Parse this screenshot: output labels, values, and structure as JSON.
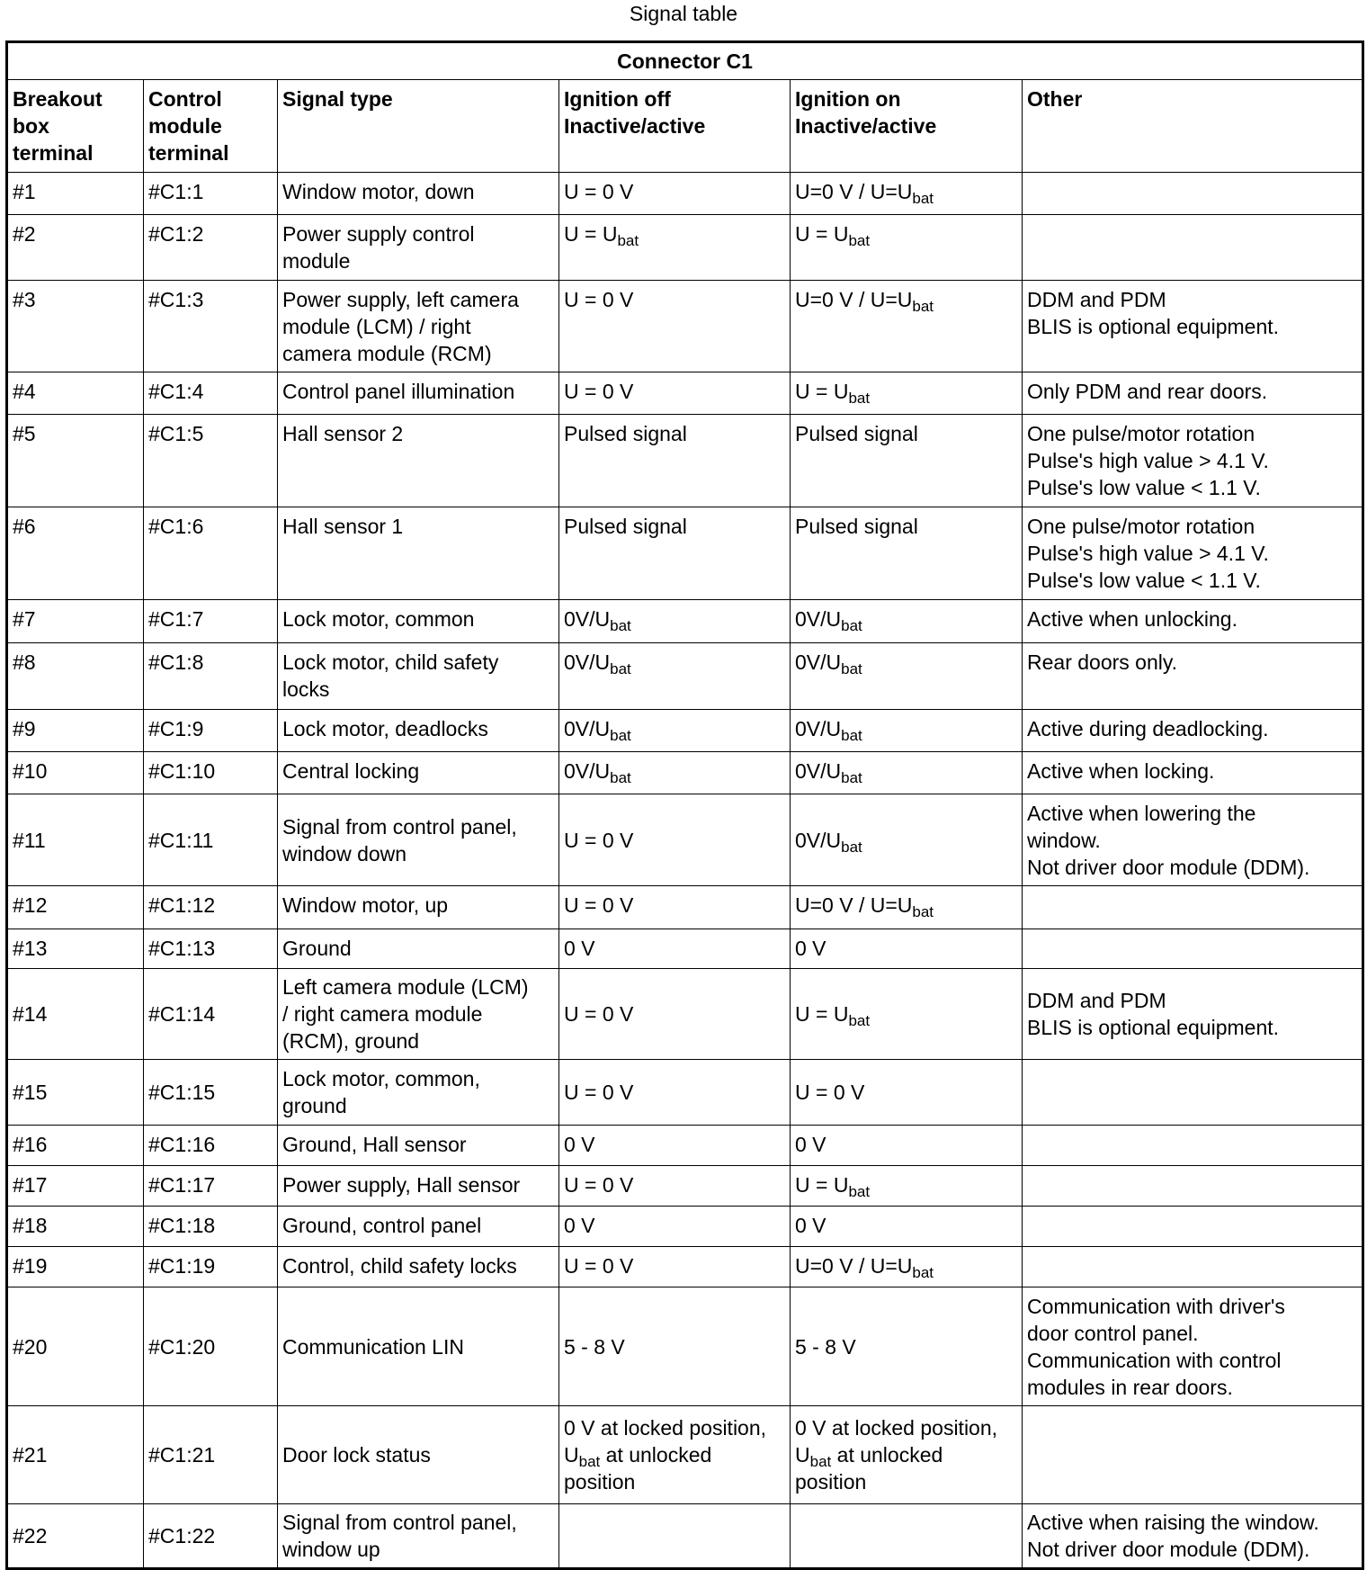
{
  "title": "Signal table",
  "connector": "Connector C1",
  "headers": [
    "Breakout\nbox\nterminal",
    "Control\nmodule\nterminal",
    "Signal type",
    "Ignition off\nInactive/active",
    "Ignition on\nInactive/active",
    "Other"
  ],
  "rows": [
    [
      [
        "#1"
      ],
      [
        "#C1:1"
      ],
      [
        "Window motor, down"
      ],
      [
        "U = 0 V"
      ],
      [
        "U=0 V / U=U",
        {
          "sub": "bat"
        }
      ],
      [
        ""
      ]
    ],
    [
      [
        "#2"
      ],
      [
        "#C1:2"
      ],
      [
        "Power supply control\nmodule"
      ],
      [
        "U = U",
        {
          "sub": "bat"
        }
      ],
      [
        "U = U",
        {
          "sub": "bat"
        }
      ],
      [
        ""
      ]
    ],
    [
      [
        "#3"
      ],
      [
        "#C1:3"
      ],
      [
        "Power supply, left camera\nmodule (LCM) / right\ncamera module (RCM)"
      ],
      [
        "U = 0 V"
      ],
      [
        "U=0 V / U=U",
        {
          "sub": "bat"
        }
      ],
      [
        "DDM and PDM\nBLIS is optional equipment."
      ]
    ],
    [
      [
        "#4"
      ],
      [
        "#C1:4"
      ],
      [
        "Control panel illumination"
      ],
      [
        "U = 0 V"
      ],
      [
        "U = U",
        {
          "sub": "bat"
        }
      ],
      [
        "Only PDM and rear doors."
      ]
    ],
    [
      [
        "#5"
      ],
      [
        "#C1:5"
      ],
      [
        "Hall sensor 2"
      ],
      [
        "Pulsed signal"
      ],
      [
        "Pulsed signal"
      ],
      [
        "One pulse/motor rotation\nPulse's high value > 4.1 V.\nPulse's low value < 1.1 V."
      ]
    ],
    [
      [
        "#6"
      ],
      [
        "#C1:6"
      ],
      [
        "Hall sensor 1"
      ],
      [
        "Pulsed signal"
      ],
      [
        "Pulsed signal"
      ],
      [
        "One pulse/motor rotation\nPulse's high value > 4.1 V.\nPulse's low value < 1.1 V."
      ]
    ],
    [
      [
        "#7"
      ],
      [
        "#C1:7"
      ],
      [
        "Lock motor, common"
      ],
      [
        "0V/U",
        {
          "sub": "bat"
        }
      ],
      [
        "0V/U",
        {
          "sub": "bat"
        }
      ],
      [
        "Active when unlocking."
      ]
    ],
    [
      [
        "#8"
      ],
      [
        "#C1:8"
      ],
      [
        "Lock motor, child safety\nlocks"
      ],
      [
        "0V/U",
        {
          "sub": "bat"
        }
      ],
      [
        "0V/U",
        {
          "sub": "bat"
        }
      ],
      [
        "Rear doors only."
      ]
    ],
    [
      [
        "#9"
      ],
      [
        "#C1:9"
      ],
      [
        "Lock motor, deadlocks"
      ],
      [
        "0V/U",
        {
          "sub": "bat"
        }
      ],
      [
        "0V/U",
        {
          "sub": "bat"
        }
      ],
      [
        "Active during deadlocking."
      ]
    ],
    [
      [
        "#10"
      ],
      [
        "#C1:10"
      ],
      [
        "Central locking"
      ],
      [
        "0V/U",
        {
          "sub": "bat"
        }
      ],
      [
        "0V/U",
        {
          "sub": "bat"
        }
      ],
      [
        "Active when locking."
      ]
    ],
    [
      [
        "#11"
      ],
      [
        "#C1:11"
      ],
      [
        "Signal from control panel,\nwindow down"
      ],
      [
        "U = 0 V"
      ],
      [
        "0V/U",
        {
          "sub": "bat"
        }
      ],
      [
        "Active when lowering the\nwindow.\nNot driver door module (DDM)."
      ]
    ],
    [
      [
        "#12"
      ],
      [
        "#C1:12"
      ],
      [
        "Window motor, up"
      ],
      [
        "U = 0 V"
      ],
      [
        "U=0 V / U=U",
        {
          "sub": "bat"
        }
      ],
      [
        ""
      ]
    ],
    [
      [
        "#13"
      ],
      [
        "#C1:13"
      ],
      [
        "Ground"
      ],
      [
        "0 V"
      ],
      [
        "0 V"
      ],
      [
        ""
      ]
    ],
    [
      [
        "#14"
      ],
      [
        "#C1:14"
      ],
      [
        "Left camera module (LCM)\n/ right camera module\n(RCM), ground"
      ],
      [
        "U = 0 V"
      ],
      [
        "U = U",
        {
          "sub": "bat"
        }
      ],
      [
        "DDM and PDM\nBLIS is optional equipment."
      ]
    ],
    [
      [
        "#15"
      ],
      [
        "#C1:15"
      ],
      [
        "Lock motor, common,\nground"
      ],
      [
        "U = 0 V"
      ],
      [
        "U = 0 V"
      ],
      [
        ""
      ]
    ],
    [
      [
        "#16"
      ],
      [
        "#C1:16"
      ],
      [
        "Ground, Hall sensor"
      ],
      [
        "0 V"
      ],
      [
        "0 V"
      ],
      [
        ""
      ]
    ],
    [
      [
        "#17"
      ],
      [
        "#C1:17"
      ],
      [
        "Power supply, Hall sensor"
      ],
      [
        "U = 0 V"
      ],
      [
        "U = U",
        {
          "sub": "bat"
        }
      ],
      [
        ""
      ]
    ],
    [
      [
        "#18"
      ],
      [
        "#C1:18"
      ],
      [
        "Ground, control panel"
      ],
      [
        "0 V"
      ],
      [
        "0 V"
      ],
      [
        ""
      ]
    ],
    [
      [
        "#19"
      ],
      [
        "#C1:19"
      ],
      [
        "Control, child safety locks"
      ],
      [
        "U = 0 V"
      ],
      [
        "U=0 V / U=U",
        {
          "sub": "bat"
        }
      ],
      [
        ""
      ]
    ],
    [
      [
        "#20"
      ],
      [
        "#C1:20"
      ],
      [
        "Communication LIN"
      ],
      [
        "5 - 8 V"
      ],
      [
        "5 - 8 V"
      ],
      [
        "Communication with driver's\ndoor control panel.\nCommunication with control\nmodules in rear doors."
      ]
    ],
    [
      [
        "#21"
      ],
      [
        "#C1:21"
      ],
      [
        "Door lock status"
      ],
      [
        "0 V at locked position,\nU",
        {
          "sub": "bat"
        },
        " at unlocked\nposition"
      ],
      [
        "0 V at locked position,\nU",
        {
          "sub": "bat"
        },
        " at unlocked\nposition"
      ],
      [
        ""
      ]
    ],
    [
      [
        "#22"
      ],
      [
        "#C1:22"
      ],
      [
        "Signal from control panel,\nwindow up"
      ],
      [
        ""
      ],
      [
        ""
      ],
      [
        "Active when raising the window.\nNot driver door module (DDM)."
      ]
    ]
  ]
}
